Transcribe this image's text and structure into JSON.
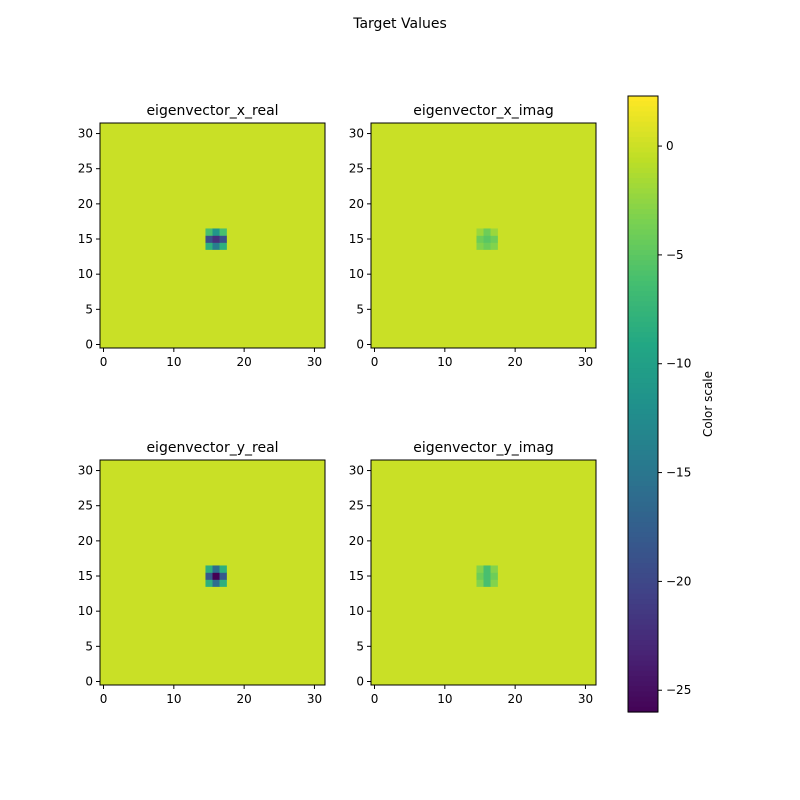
{
  "figure": {
    "title": "Target Values",
    "background": "#ffffff"
  },
  "chart_data": {
    "type": "heatmap",
    "colormap": "viridis",
    "grid_size": 32,
    "background_value": 0,
    "x_ticks": [
      0,
      10,
      20,
      30
    ],
    "y_ticks": [
      0,
      5,
      10,
      15,
      20,
      25,
      30
    ],
    "x_range": [
      -0.5,
      31.5
    ],
    "y_range": [
      31.5,
      -0.5
    ],
    "panels": [
      {
        "title": "eigenvector_x_real",
        "cells": [
          {
            "x": 15,
            "y": 15,
            "value": -8
          },
          {
            "x": 16,
            "y": 15,
            "value": -14
          },
          {
            "x": 17,
            "y": 15,
            "value": -8
          },
          {
            "x": 15,
            "y": 16,
            "value": -19
          },
          {
            "x": 16,
            "y": 16,
            "value": -22
          },
          {
            "x": 17,
            "y": 16,
            "value": -19
          },
          {
            "x": 15,
            "y": 17,
            "value": -6
          },
          {
            "x": 16,
            "y": 17,
            "value": -11
          },
          {
            "x": 17,
            "y": 17,
            "value": -6
          }
        ]
      },
      {
        "title": "eigenvector_x_imag",
        "cells": [
          {
            "x": 15,
            "y": 15,
            "value": -3
          },
          {
            "x": 16,
            "y": 15,
            "value": -4
          },
          {
            "x": 17,
            "y": 15,
            "value": -3
          },
          {
            "x": 15,
            "y": 16,
            "value": -4
          },
          {
            "x": 16,
            "y": 16,
            "value": -5
          },
          {
            "x": 17,
            "y": 16,
            "value": -4
          },
          {
            "x": 15,
            "y": 17,
            "value": -2
          },
          {
            "x": 16,
            "y": 17,
            "value": -4
          },
          {
            "x": 17,
            "y": 17,
            "value": -2
          }
        ]
      },
      {
        "title": "eigenvector_y_real",
        "cells": [
          {
            "x": 15,
            "y": 15,
            "value": -8
          },
          {
            "x": 16,
            "y": 15,
            "value": -16
          },
          {
            "x": 17,
            "y": 15,
            "value": -8
          },
          {
            "x": 15,
            "y": 16,
            "value": -18
          },
          {
            "x": 16,
            "y": 16,
            "value": -26
          },
          {
            "x": 17,
            "y": 16,
            "value": -18
          },
          {
            "x": 15,
            "y": 17,
            "value": -8
          },
          {
            "x": 16,
            "y": 17,
            "value": -16
          },
          {
            "x": 17,
            "y": 17,
            "value": -8
          }
        ]
      },
      {
        "title": "eigenvector_y_imag",
        "cells": [
          {
            "x": 15,
            "y": 15,
            "value": -3
          },
          {
            "x": 16,
            "y": 15,
            "value": -6
          },
          {
            "x": 17,
            "y": 15,
            "value": -3
          },
          {
            "x": 15,
            "y": 16,
            "value": -4
          },
          {
            "x": 16,
            "y": 16,
            "value": -6
          },
          {
            "x": 17,
            "y": 16,
            "value": -4
          },
          {
            "x": 15,
            "y": 17,
            "value": -3
          },
          {
            "x": 16,
            "y": 17,
            "value": -6
          },
          {
            "x": 17,
            "y": 17,
            "value": -3
          }
        ]
      }
    ],
    "colorbar": {
      "label": "Color scale",
      "vmin": -26,
      "vmax": 2.3,
      "ticks": [
        0,
        -5,
        -10,
        -15,
        -20,
        -25
      ]
    }
  }
}
